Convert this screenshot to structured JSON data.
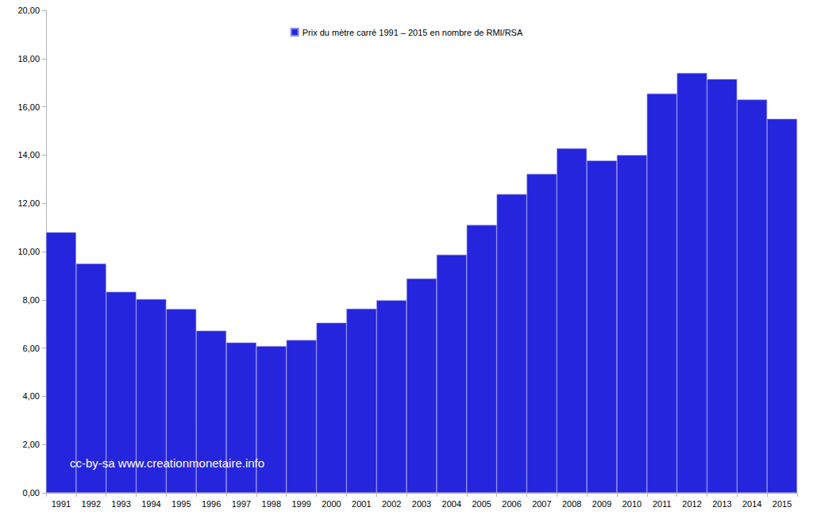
{
  "chart_data": {
    "type": "bar",
    "annotation": "cc-by-sa www.creationmonetaire.info",
    "categories": [
      "1991",
      "1992",
      "1993",
      "1994",
      "1995",
      "1996",
      "1997",
      "1998",
      "1999",
      "2000",
      "2001",
      "2002",
      "2003",
      "2004",
      "2005",
      "2006",
      "2007",
      "2008",
      "2009",
      "2010",
      "2011",
      "2012",
      "2013",
      "2014",
      "2015"
    ],
    "series": [
      {
        "name": "Prix du mètre carré 1991 – 2015 en nombre de RMI/RSA",
        "color": "#2525dd",
        "values": [
          10.8,
          9.5,
          8.33,
          8.03,
          7.62,
          6.72,
          6.23,
          6.08,
          6.33,
          7.05,
          7.63,
          7.98,
          8.88,
          9.87,
          11.1,
          12.38,
          13.22,
          14.28,
          13.77,
          14.0,
          16.55,
          17.4,
          17.15,
          16.3,
          15.5
        ]
      }
    ],
    "ylim": [
      0,
      20
    ],
    "yticks": [
      {
        "value": 0,
        "label": "0,00"
      },
      {
        "value": 2,
        "label": "2,00"
      },
      {
        "value": 4,
        "label": "4,00"
      },
      {
        "value": 6,
        "label": "6,00"
      },
      {
        "value": 8,
        "label": "8,00"
      },
      {
        "value": 10,
        "label": "10,00"
      },
      {
        "value": 12,
        "label": "12,00"
      },
      {
        "value": 14,
        "label": "14,00"
      },
      {
        "value": 16,
        "label": "16,00"
      },
      {
        "value": 18,
        "label": "18,00"
      },
      {
        "value": 20,
        "label": "20,00"
      }
    ],
    "grid": false,
    "legend": "top"
  }
}
